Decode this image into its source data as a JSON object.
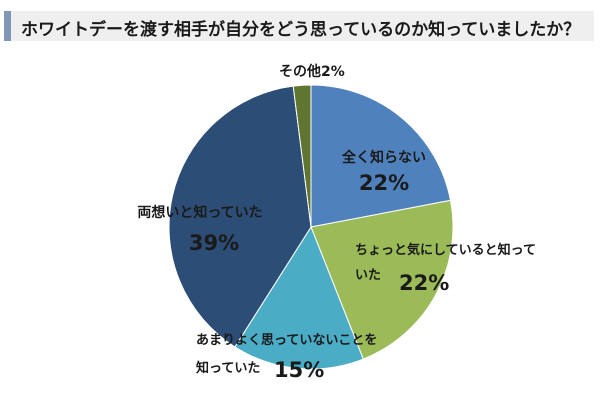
{
  "chart_data": {
    "type": "pie",
    "title": "ホワイトデーを渡す相手が自分をどう思っているのか知っていましたか？",
    "start_angle_deg": 0,
    "direction": "clockwise",
    "slices": [
      {
        "label": "全く知らない",
        "value": 22,
        "value_label": "22%",
        "color": "#4f81bd"
      },
      {
        "label": "ちょっと気にしていると知っていた",
        "value": 22,
        "value_label": "22%",
        "color": "#9bbb59"
      },
      {
        "label": "あまりよく思っていないことを知っていた",
        "value": 15,
        "value_label": "15%",
        "color": "#4bacc6"
      },
      {
        "label": "両想いと知っていた",
        "value": 39,
        "value_label": "39%",
        "color": "#2c4d75"
      },
      {
        "label": "その他",
        "value": 2,
        "value_label": "2%",
        "color": "#5f7530"
      }
    ]
  },
  "labels": {
    "s0_name": "全く知らない",
    "s0_pct": "22%",
    "s1_line1": "ちょっと気にしていると知って",
    "s1_line2": "いた",
    "s1_pct": "22%",
    "s2_line1": "あまりよく思っていないことを",
    "s2_line2": "知っていた",
    "s2_pct": "15%",
    "s3_name": "両想いと知っていた",
    "s3_pct": "39%",
    "s4_name": "その他",
    "s4_pct": "2%"
  }
}
